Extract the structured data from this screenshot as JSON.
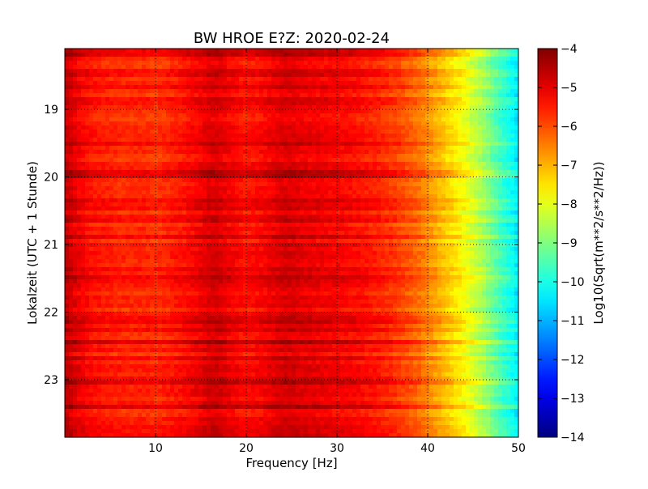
{
  "chart_data": {
    "type": "heatmap",
    "title": "BW HROE E?Z: 2020-02-24",
    "xlabel": "Frequency [Hz]",
    "ylabel": "Lokalzeit (UTC + 1 Stunde)",
    "xlim": [
      0,
      50
    ],
    "ylim": [
      18.1,
      23.85
    ],
    "x_ticks": [
      10,
      20,
      30,
      40,
      50
    ],
    "x_tick_labels": [
      "10",
      "20",
      "30",
      "40",
      "50"
    ],
    "y_ticks": [
      19,
      20,
      21,
      22,
      23
    ],
    "y_tick_labels": [
      "19",
      "20",
      "21",
      "22",
      "23"
    ],
    "grid": true,
    "colorbar": {
      "label": "Log10(Sqrt(m**2/s**2/Hz))",
      "vmin": -14,
      "vmax": -4,
      "ticks": [
        -4,
        -5,
        -6,
        -7,
        -8,
        -9,
        -10,
        -11,
        -12,
        -13,
        -14
      ],
      "tick_labels": [
        "−4",
        "−5",
        "−6",
        "−7",
        "−8",
        "−9",
        "−10",
        "−11",
        "−12",
        "−13",
        "−14"
      ],
      "colormap": "jet"
    },
    "spectrum_profile": {
      "frequency_hz": [
        0,
        0.5,
        1.5,
        3,
        6,
        9,
        10,
        11,
        13,
        15,
        16,
        17,
        18,
        20,
        22,
        24,
        25,
        26,
        28,
        30,
        32,
        35,
        37,
        38,
        39,
        40,
        41,
        42,
        43,
        44,
        45,
        46,
        47,
        48,
        49,
        50
      ],
      "log10_amplitude": [
        -4.7,
        -4.8,
        -5.1,
        -5.4,
        -5.6,
        -5.6,
        -5.7,
        -5.6,
        -5.4,
        -5.1,
        -4.9,
        -4.9,
        -5.1,
        -5.4,
        -5.2,
        -4.9,
        -4.9,
        -5.0,
        -5.1,
        -5.2,
        -5.3,
        -5.6,
        -5.9,
        -6.1,
        -6.3,
        -6.6,
        -6.9,
        -7.2,
        -7.5,
        -7.8,
        -8.2,
        -8.6,
        -9.1,
        -9.6,
        -10.0,
        -10.5
      ]
    }
  }
}
